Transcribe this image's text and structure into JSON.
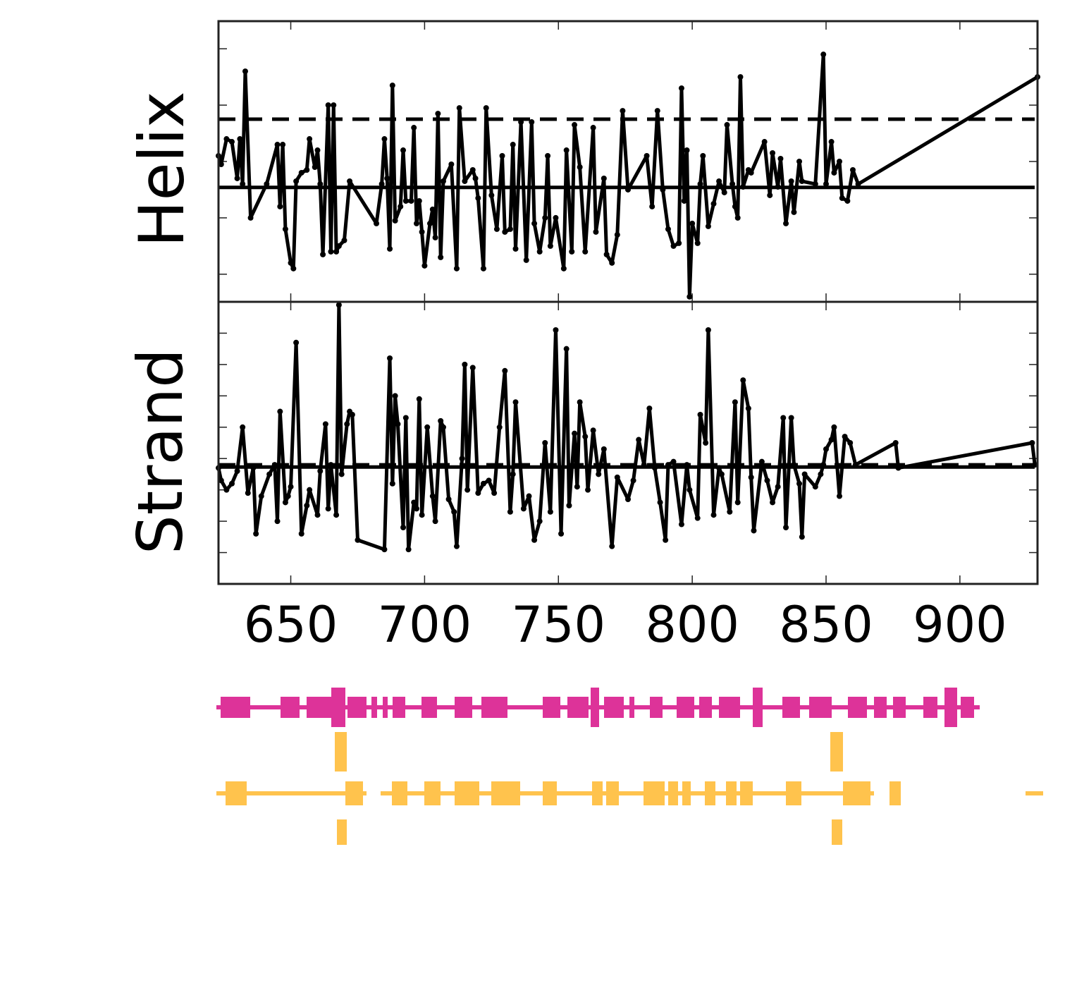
{
  "chart_data": [
    {
      "type": "line",
      "ylabel": "Helix",
      "xlim": [
        623,
        929
      ],
      "ylim": [
        -0.49,
        4.49
      ],
      "yticks": [
        0,
        1,
        2,
        3,
        4
      ],
      "reference_lines": [
        {
          "value": 1.54,
          "style": "solid"
        },
        {
          "value": 2.75,
          "style": "dashed"
        }
      ],
      "x": [
        623,
        624,
        626,
        628,
        630,
        631,
        632,
        633,
        635,
        641,
        645,
        646,
        647,
        648,
        650,
        651,
        652,
        654,
        656,
        657,
        659,
        660,
        661,
        662,
        664,
        665,
        666,
        667,
        668,
        670,
        672,
        682,
        684,
        685,
        686,
        687,
        688,
        689,
        691,
        692,
        693,
        695,
        696,
        697,
        698,
        699,
        700,
        702,
        703,
        704,
        705,
        706,
        707,
        710,
        712,
        713,
        715,
        718,
        719,
        720,
        722,
        723,
        725,
        727,
        729,
        730,
        732,
        733,
        734,
        736,
        738,
        740,
        741,
        743,
        745,
        746,
        747,
        749,
        752,
        753,
        755,
        756,
        758,
        760,
        763,
        764,
        767,
        768,
        770,
        772,
        774,
        776,
        783,
        785,
        787,
        789,
        791,
        793,
        795,
        796,
        797,
        798,
        799,
        800,
        802,
        803,
        804,
        806,
        808,
        810,
        812,
        813,
        815,
        816,
        817,
        818,
        819,
        821,
        822,
        827,
        829,
        830,
        832,
        833,
        835,
        837,
        838,
        840,
        841,
        846,
        849,
        850,
        852,
        853,
        855,
        856,
        858,
        860,
        862,
        929
      ],
      "series": [
        {
          "color": "#000000",
          "values": [
            2.1,
            1.95,
            2.4,
            2.35,
            1.7,
            2.4,
            1.6,
            3.6,
            1.0,
            1.6,
            2.3,
            1.2,
            2.3,
            0.8,
            0.2,
            0.1,
            1.65,
            1.8,
            1.85,
            2.4,
            1.9,
            2.2,
            1.6,
            0.35,
            3.0,
            0.4,
            3.0,
            0.4,
            0.5,
            0.6,
            1.65,
            0.9,
            1.6,
            2.4,
            1.7,
            0.45,
            3.35,
            0.95,
            1.2,
            2.2,
            1.3,
            1.3,
            2.6,
            0.9,
            1.3,
            0.75,
            0.15,
            0.9,
            1.15,
            0.65,
            2.85,
            0.3,
            1.65,
            1.95,
            0.1,
            2.95,
            1.65,
            1.85,
            1.7,
            1.35,
            0.1,
            2.95,
            1.4,
            0.8,
            2.1,
            0.75,
            0.8,
            2.3,
            0.45,
            2.7,
            0.25,
            2.7,
            0.9,
            0.4,
            1.0,
            2.1,
            0.5,
            1.0,
            0.1,
            2.2,
            0.4,
            2.65,
            1.9,
            0.4,
            2.6,
            0.75,
            1.7,
            0.35,
            0.2,
            0.7,
            2.9,
            1.5,
            2.1,
            1.2,
            2.9,
            1.5,
            0.8,
            0.5,
            0.55,
            3.3,
            1.3,
            2.2,
            -0.4,
            0.9,
            0.55,
            1.6,
            2.1,
            0.85,
            1.25,
            1.65,
            1.45,
            2.65,
            1.6,
            1.2,
            1.0,
            3.5,
            1.55,
            1.85,
            1.8,
            2.35,
            1.4,
            2.15,
            1.55,
            2.05,
            0.9,
            1.65,
            1.1,
            2.0,
            1.65,
            1.6,
            3.9,
            1.6,
            2.35,
            1.8,
            2.0,
            1.35,
            1.3,
            1.85,
            1.6,
            3.5
          ]
        }
      ]
    },
    {
      "type": "line",
      "ylabel": "Strand",
      "xlim": [
        623,
        929
      ],
      "xticks": [
        650,
        700,
        750,
        800,
        850,
        900
      ],
      "ylim": [
        -1,
        8
      ],
      "yticks": [
        0,
        1,
        2,
        3,
        4,
        5,
        6,
        7
      ],
      "reference_lines": [
        {
          "value": 2.73,
          "style": "solid"
        },
        {
          "value": 2.8,
          "style": "dashed"
        }
      ],
      "x": [
        623,
        624,
        626,
        628,
        630,
        632,
        634,
        636,
        637,
        639,
        642,
        644,
        645,
        646,
        648,
        649,
        650,
        652,
        654,
        656,
        657,
        660,
        661,
        663,
        664,
        665,
        667,
        668,
        669,
        671,
        672,
        673,
        675,
        685,
        687,
        688,
        689,
        690,
        692,
        693,
        694,
        696,
        697,
        698,
        699,
        701,
        703,
        704,
        706,
        707,
        709,
        711,
        712,
        714,
        715,
        716,
        718,
        720,
        722,
        724,
        726,
        728,
        730,
        732,
        733,
        734,
        737,
        739,
        741,
        743,
        745,
        747,
        749,
        751,
        753,
        754,
        756,
        757,
        758,
        760,
        761,
        763,
        765,
        767,
        770,
        772,
        776,
        778,
        780,
        782,
        784,
        786,
        788,
        790,
        791,
        793,
        796,
        798,
        799,
        802,
        803,
        805,
        806,
        808,
        810,
        811,
        814,
        816,
        817,
        819,
        821,
        822,
        823,
        826,
        828,
        830,
        832,
        834,
        835,
        837,
        838,
        840,
        841,
        842,
        846,
        848,
        849,
        850,
        852,
        853,
        855,
        857,
        859,
        861,
        876,
        877,
        927,
        928
      ],
      "series": [
        {
          "color": "#000000",
          "values": [
            2.7,
            2.3,
            2.0,
            2.2,
            2.6,
            4.0,
            1.9,
            2.7,
            0.6,
            1.8,
            2.5,
            2.8,
            1.0,
            4.5,
            1.6,
            1.8,
            2.1,
            6.7,
            0.6,
            1.5,
            2.0,
            1.2,
            2.6,
            4.1,
            1.4,
            2.8,
            1.2,
            7.9,
            2.5,
            4.1,
            4.5,
            4.4,
            0.4,
            0.1,
            6.2,
            2.2,
            5.0,
            4.1,
            0.8,
            4.3,
            0.1,
            1.6,
            1.4,
            4.9,
            1.2,
            4.0,
            1.8,
            1.0,
            4.2,
            4.0,
            1.7,
            1.3,
            0.2,
            3.0,
            6.0,
            2.0,
            5.9,
            1.9,
            2.2,
            2.3,
            1.9,
            4.0,
            5.8,
            1.3,
            2.5,
            4.8,
            1.4,
            1.8,
            0.4,
            1.0,
            3.5,
            1.3,
            7.1,
            0.6,
            6.5,
            1.5,
            3.8,
            2.1,
            4.8,
            3.7,
            2.0,
            3.9,
            2.5,
            3.3,
            0.2,
            2.4,
            1.7,
            2.3,
            3.6,
            2.8,
            4.6,
            2.7,
            1.6,
            0.4,
            2.8,
            2.9,
            0.9,
            2.8,
            2.0,
            1.1,
            4.4,
            3.5,
            7.1,
            1.2,
            2.7,
            2.5,
            1.3,
            4.8,
            1.6,
            5.5,
            4.6,
            2.4,
            0.7,
            2.9,
            2.3,
            1.6,
            2.1,
            4.3,
            0.8,
            4.3,
            2.8,
            2.2,
            0.5,
            2.5,
            2.1,
            2.5,
            2.8,
            3.3,
            3.6,
            4.0,
            1.8,
            3.7,
            3.5,
            2.8,
            3.5,
            2.7,
            3.5,
            2.8
          ]
        }
      ]
    }
  ]
}
